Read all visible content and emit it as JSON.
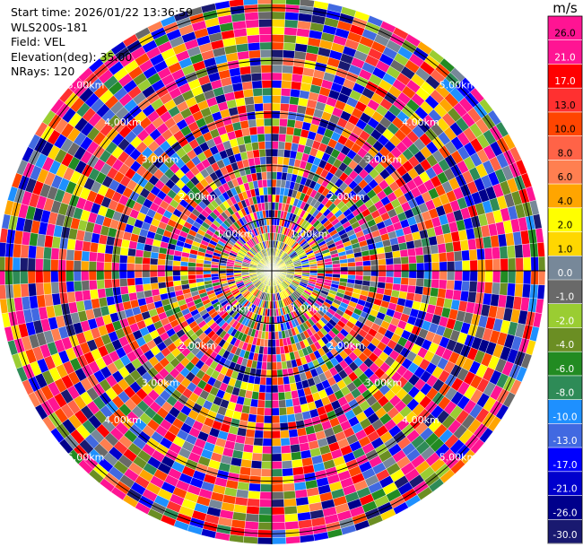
{
  "header": {
    "start_time": "Start time: 2026/01/22 13:36:59",
    "instrument": "WLS200s-181",
    "field": "Field: VEL",
    "elevation": "Elevation(deg): 35.00",
    "nrays": "NRays: 120"
  },
  "chart_data": {
    "type": "heatmap",
    "projection": "polar-ppi",
    "field": "VEL",
    "units": "m/s",
    "n_rays": 120,
    "elevation_deg": 35.0,
    "range_rings_km": [
      {
        "value": 1,
        "label": "1.00km"
      },
      {
        "value": 2,
        "label": "2.00km"
      },
      {
        "value": 3,
        "label": "3.00km"
      },
      {
        "value": 4,
        "label": "4.00km"
      },
      {
        "value": 5,
        "label": "5.00km"
      }
    ],
    "max_range_km": 5.2,
    "colorbar": {
      "title": "m/s",
      "ticks": [
        "26.0",
        "21.0",
        "17.0",
        "13.0",
        "10.0",
        "8.0",
        "6.0",
        "4.0",
        "2.0",
        "1.0",
        "0.0",
        "-1.0",
        "-2.0",
        "-4.0",
        "-6.0",
        "-8.0",
        "-10.0",
        "-13.0",
        "-17.0",
        "-21.0",
        "-26.0",
        "-30.0"
      ],
      "bins": [
        {
          "min": 26,
          "max": 30,
          "color": "#ff1493"
        },
        {
          "min": 21,
          "max": 26,
          "color": "#ff1493"
        },
        {
          "min": 17,
          "max": 21,
          "color": "#ff0000"
        },
        {
          "min": 13,
          "max": 17,
          "color": "#ff3030"
        },
        {
          "min": 10,
          "max": 13,
          "color": "#ff4500"
        },
        {
          "min": 8,
          "max": 10,
          "color": "#ff6347"
        },
        {
          "min": 6,
          "max": 8,
          "color": "#ff7f50"
        },
        {
          "min": 4,
          "max": 6,
          "color": "#ffa500"
        },
        {
          "min": 2,
          "max": 4,
          "color": "#ffff00"
        },
        {
          "min": 1,
          "max": 2,
          "color": "#ffd700"
        },
        {
          "min": 0,
          "max": 1,
          "color": "#778899"
        },
        {
          "min": -1,
          "max": 0,
          "color": "#696969"
        },
        {
          "min": -2,
          "max": -1,
          "color": "#9acd32"
        },
        {
          "min": -4,
          "max": -2,
          "color": "#6b8e23"
        },
        {
          "min": -6,
          "max": -4,
          "color": "#228b22"
        },
        {
          "min": -8,
          "max": -6,
          "color": "#2e8b57"
        },
        {
          "min": -10,
          "max": -8,
          "color": "#1e90ff"
        },
        {
          "min": -13,
          "max": -10,
          "color": "#4169e1"
        },
        {
          "min": -17,
          "max": -13,
          "color": "#0000ff"
        },
        {
          "min": -21,
          "max": -17,
          "color": "#0000cd"
        },
        {
          "min": -26,
          "max": -21,
          "color": "#00008b"
        },
        {
          "min": -30,
          "max": -26,
          "color": "#191970"
        }
      ]
    }
  }
}
